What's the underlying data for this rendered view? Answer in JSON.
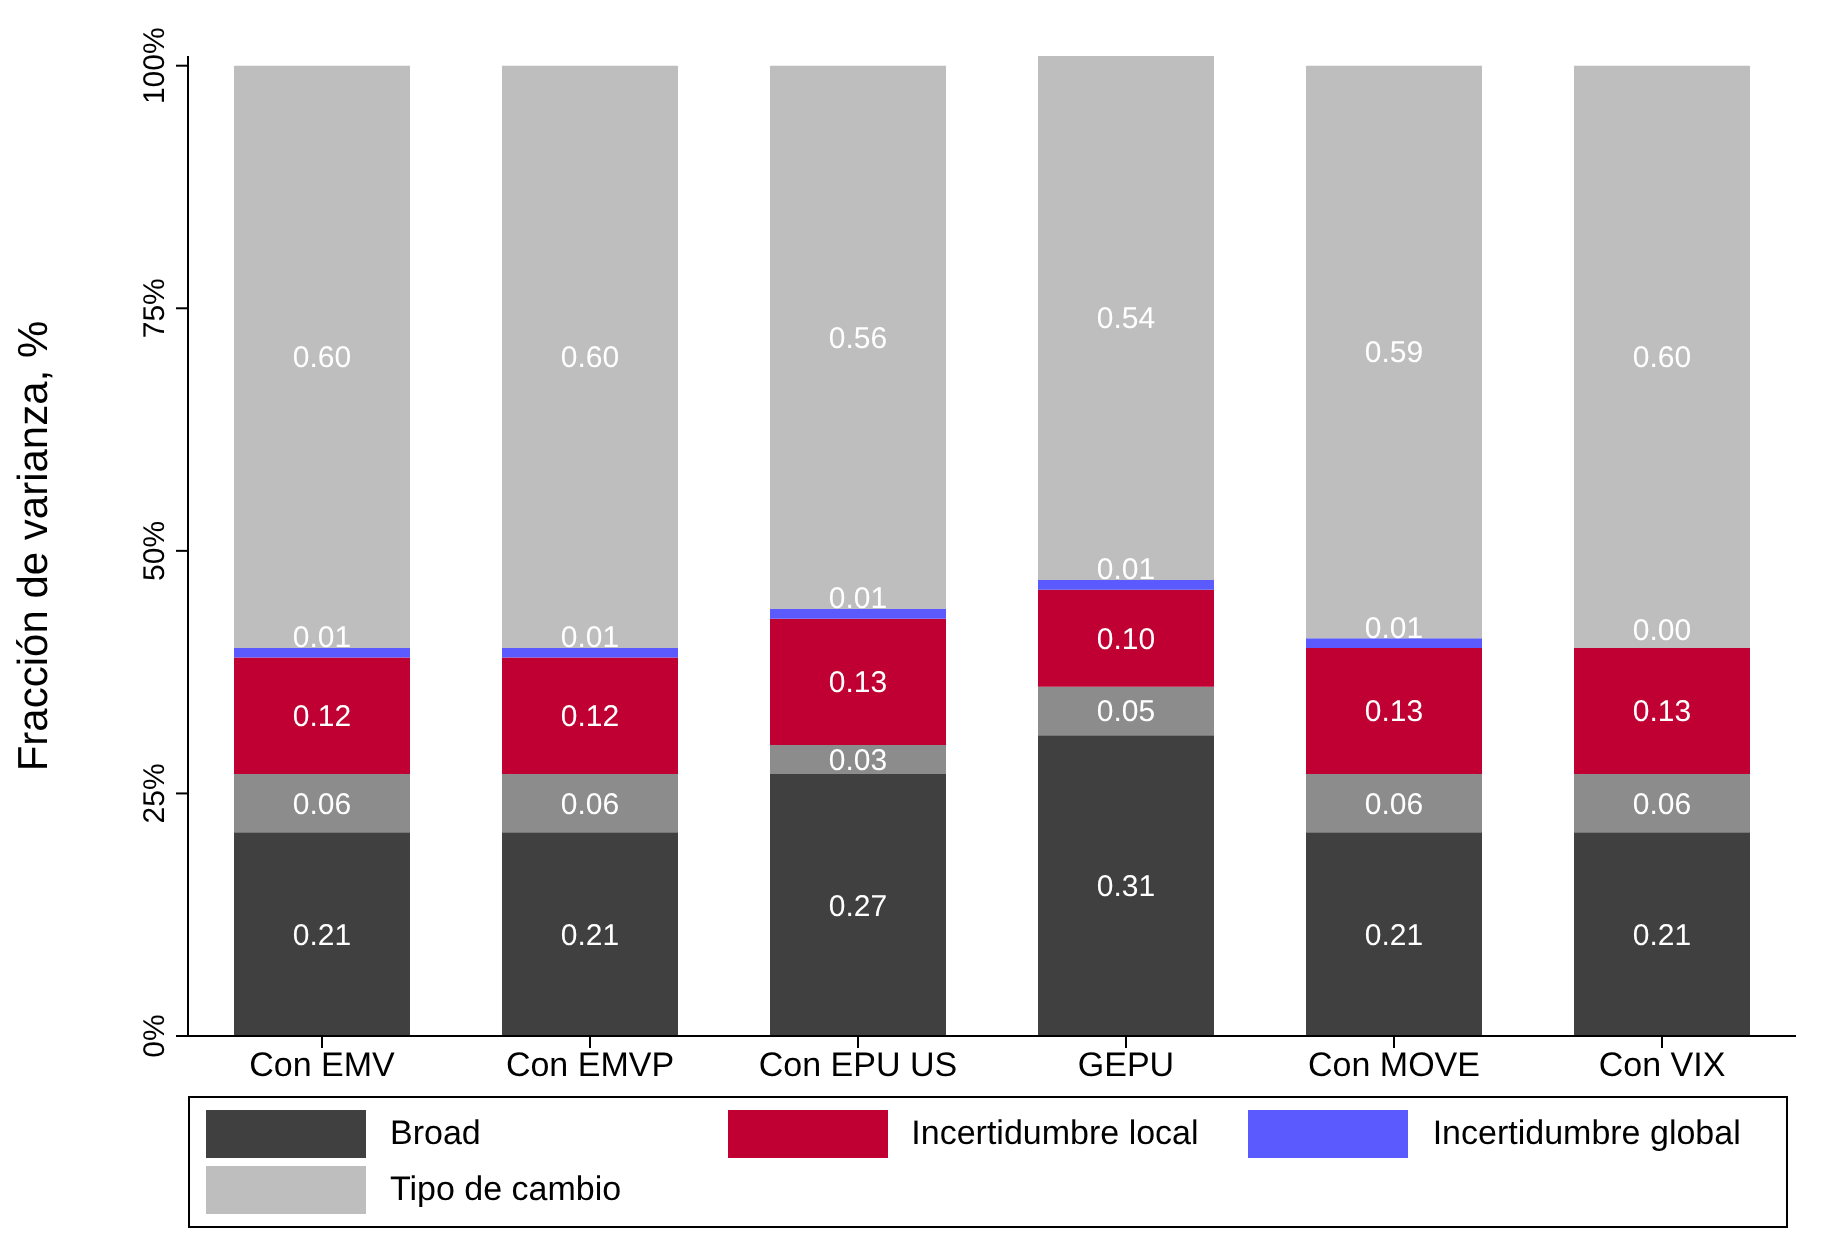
{
  "chart_data": {
    "type": "bar",
    "stacked": true,
    "ylabel": "Fracción de varianza, %",
    "categories": [
      "Con EMV",
      "Con EMVP",
      "Con EPU US",
      "GEPU",
      "Con MOVE",
      "Con VIX"
    ],
    "ylim": [
      0,
      1.01
    ],
    "yticks": [
      {
        "value": 0,
        "label": "0%"
      },
      {
        "value": 0.25,
        "label": "25%"
      },
      {
        "value": 0.5,
        "label": "50%"
      },
      {
        "value": 0.75,
        "label": "75%"
      },
      {
        "value": 1,
        "label": "100%"
      }
    ],
    "legend": "bottom",
    "series": [
      {
        "name": "Broad",
        "color": "#404040",
        "values": [
          0.21,
          0.21,
          0.27,
          0.31,
          0.21,
          0.21
        ],
        "value_labels": [
          "0.21",
          "0.21",
          "0.27",
          "0.31",
          "0.21",
          "0.21"
        ]
      },
      {
        "color": "#8c8c8c",
        "values": [
          0.06,
          0.06,
          0.03,
          0.05,
          0.06,
          0.06
        ],
        "value_labels": [
          "0.06",
          "0.06",
          "0.03",
          "0.05",
          "0.06",
          "0.06"
        ]
      },
      {
        "name": "Incertidumbre local",
        "color": "#c00033",
        "values": [
          0.12,
          0.12,
          0.13,
          0.1,
          0.13,
          0.13
        ],
        "value_labels": [
          "0.12",
          "0.12",
          "0.13",
          "0.10",
          "0.13",
          "0.13"
        ]
      },
      {
        "name": "Incertidumbre global",
        "color": "#5a5aff",
        "values": [
          0.01,
          0.01,
          0.01,
          0.01,
          0.01,
          0.0
        ],
        "value_labels": [
          "0.01",
          "0.01",
          "0.01",
          "0.01",
          "0.01",
          "0.00"
        ]
      },
      {
        "name": "Tipo de cambio",
        "color": "#bebebe",
        "values": [
          0.6,
          0.6,
          0.56,
          0.54,
          0.59,
          0.6
        ],
        "value_labels": [
          "0.60",
          "0.60",
          "0.56",
          "0.54",
          "0.59",
          "0.60"
        ]
      }
    ]
  }
}
